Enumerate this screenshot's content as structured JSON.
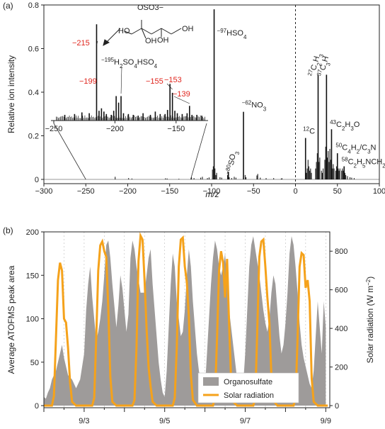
{
  "chart_data": [
    {
      "panel_label": "(a)",
      "type": "bar",
      "xlabel": "m/z",
      "ylabel": "Relative ion intensity",
      "xlim": [
        -300,
        100
      ],
      "ylim": [
        0,
        0.8
      ],
      "xticks": [
        "−300",
        "−250",
        "−200",
        "−150",
        "−100",
        "−50",
        "0",
        "50",
        "100"
      ],
      "yticks": [
        "0",
        "0.2",
        "0.4",
        "0.6",
        "0.8"
      ],
      "zero_line": "dashed",
      "peaks": [
        {
          "x": -97,
          "y": 0.78,
          "label": "HSO4",
          "sup": "−97"
        },
        {
          "x": -80,
          "y": 0.035,
          "label": "SO3",
          "sup": "−80"
        },
        {
          "x": -62,
          "y": 0.31,
          "label": "NO3",
          "sup": "−62"
        },
        {
          "x": 12,
          "y": 0.19,
          "label": "C",
          "sup": "12"
        },
        {
          "x": 27,
          "y": 0.48,
          "label": "C2H3",
          "sup": "27"
        },
        {
          "x": 37,
          "y": 0.48,
          "label": "C3H",
          "sup": "37"
        },
        {
          "x": 43,
          "y": 0.23,
          "label": "C2H3O",
          "sup": "43"
        },
        {
          "x": 50,
          "y": 0.12,
          "label": "C4H2/C3N",
          "sup": "50"
        },
        {
          "x": 58,
          "y": 0.06,
          "label": "C2H5NCH2",
          "sup": "58"
        }
      ],
      "minor_peaks": [
        {
          "x": -215,
          "y": 0.012
        },
        {
          "x": -199,
          "y": 0.006
        },
        {
          "x": -195,
          "y": 0.004
        },
        {
          "x": -155,
          "y": 0.005
        },
        {
          "x": -153,
          "y": 0.004
        },
        {
          "x": -139,
          "y": 0.003
        },
        {
          "x": -124,
          "y": 0.01
        },
        {
          "x": -121,
          "y": 0.006
        },
        {
          "x": -113,
          "y": 0.008
        },
        {
          "x": -111,
          "y": 0.012
        },
        {
          "x": -105,
          "y": 0.006
        },
        {
          "x": -103,
          "y": 0.009
        },
        {
          "x": -99,
          "y": 0.045
        },
        {
          "x": -98,
          "y": 0.06
        },
        {
          "x": -96,
          "y": 0.05
        },
        {
          "x": -95,
          "y": 0.02
        },
        {
          "x": -94,
          "y": 0.03
        },
        {
          "x": -90,
          "y": 0.01
        },
        {
          "x": -88,
          "y": 0.008
        },
        {
          "x": -81,
          "y": 0.02
        },
        {
          "x": -79,
          "y": 0.01
        },
        {
          "x": -76,
          "y": 0.006
        },
        {
          "x": -73,
          "y": 0.012
        },
        {
          "x": -71,
          "y": 0.008
        },
        {
          "x": -60,
          "y": 0.02
        },
        {
          "x": -59,
          "y": 0.01
        },
        {
          "x": -46,
          "y": 0.018
        },
        {
          "x": -45,
          "y": 0.025
        },
        {
          "x": -42,
          "y": 0.008
        },
        {
          "x": -35,
          "y": 0.006
        },
        {
          "x": -26,
          "y": 0.006
        },
        {
          "x": -17,
          "y": 0.004
        },
        {
          "x": -16,
          "y": 0.005
        },
        {
          "x": 13,
          "y": 0.03
        },
        {
          "x": 14,
          "y": 0.05
        },
        {
          "x": 15,
          "y": 0.09
        },
        {
          "x": 16,
          "y": 0.06
        },
        {
          "x": 17,
          "y": 0.04
        },
        {
          "x": 18,
          "y": 0.05
        },
        {
          "x": 19,
          "y": 0.03
        },
        {
          "x": 24,
          "y": 0.05
        },
        {
          "x": 25,
          "y": 0.08
        },
        {
          "x": 26,
          "y": 0.12
        },
        {
          "x": 28,
          "y": 0.08
        },
        {
          "x": 29,
          "y": 0.1
        },
        {
          "x": 31,
          "y": 0.04
        },
        {
          "x": 32,
          "y": 0.03
        },
        {
          "x": 33,
          "y": 0.05
        },
        {
          "x": 35,
          "y": 0.09
        },
        {
          "x": 36,
          "y": 0.15
        },
        {
          "x": 38,
          "y": 0.1
        },
        {
          "x": 39,
          "y": 0.13
        },
        {
          "x": 40,
          "y": 0.08
        },
        {
          "x": 41,
          "y": 0.14
        },
        {
          "x": 42,
          "y": 0.09
        },
        {
          "x": 44,
          "y": 0.05
        },
        {
          "x": 45,
          "y": 0.07
        },
        {
          "x": 46,
          "y": 0.05
        },
        {
          "x": 48,
          "y": 0.04
        },
        {
          "x": 49,
          "y": 0.06
        },
        {
          "x": 51,
          "y": 0.05
        },
        {
          "x": 52,
          "y": 0.04
        },
        {
          "x": 53,
          "y": 0.05
        },
        {
          "x": 55,
          "y": 0.04
        },
        {
          "x": 56,
          "y": 0.05
        },
        {
          "x": 57,
          "y": 0.04
        },
        {
          "x": 59,
          "y": 0.03
        },
        {
          "x": 60,
          "y": 0.02
        },
        {
          "x": 62,
          "y": 0.015
        },
        {
          "x": 65,
          "y": 0.01
        },
        {
          "x": 67,
          "y": 0.008
        },
        {
          "x": 70,
          "y": 0.006
        }
      ],
      "inset": {
        "xlim": [
          -250,
          -125
        ],
        "xticks": [
          "−250",
          "−200",
          "−150"
        ],
        "ylim": [
          0,
          0.012
        ],
        "zoom_range": [
          -250,
          -125
        ],
        "peaks": [
          {
            "x": -215,
            "y": 0.0118,
            "label": "−215",
            "color": "red"
          },
          {
            "x": -199,
            "y": 0.003,
            "label": "−199",
            "color": "red"
          },
          {
            "x": -197,
            "y": 0.0022
          },
          {
            "x": -195,
            "y": 0.003,
            "label": "H2SO4HSO4",
            "sup": "−195"
          },
          {
            "x": -155,
            "y": 0.0045,
            "label": "−155",
            "color": "red"
          },
          {
            "x": -153,
            "y": 0.0034,
            "label": "−153",
            "color": "red"
          },
          {
            "x": -139,
            "y": 0.0018,
            "label": "−139",
            "color": "red"
          },
          {
            "x": -241,
            "y": 0.0007
          },
          {
            "x": -233,
            "y": 0.0008
          },
          {
            "x": -227,
            "y": 0.001
          },
          {
            "x": -221,
            "y": 0.0009
          },
          {
            "x": -213,
            "y": 0.0012
          },
          {
            "x": -211,
            "y": 0.0015
          },
          {
            "x": -209,
            "y": 0.0011
          },
          {
            "x": -207,
            "y": 0.0008
          },
          {
            "x": -203,
            "y": 0.0007
          },
          {
            "x": -201,
            "y": 0.0012
          },
          {
            "x": -193,
            "y": 0.0009
          },
          {
            "x": -189,
            "y": 0.0008
          },
          {
            "x": -185,
            "y": 0.0007
          },
          {
            "x": -181,
            "y": 0.0006
          },
          {
            "x": -177,
            "y": 0.0009
          },
          {
            "x": -171,
            "y": 0.0007
          },
          {
            "x": -167,
            "y": 0.0011
          },
          {
            "x": -163,
            "y": 0.0008
          },
          {
            "x": -159,
            "y": 0.0008
          },
          {
            "x": -157,
            "y": 0.0013
          },
          {
            "x": -151,
            "y": 0.0012
          },
          {
            "x": -149,
            "y": 0.0009
          },
          {
            "x": -145,
            "y": 0.0008
          },
          {
            "x": -141,
            "y": 0.0009
          },
          {
            "x": -137,
            "y": 0.0007
          },
          {
            "x": -133,
            "y": 0.0007
          },
          {
            "x": -129,
            "y": 0.0006
          }
        ],
        "structure_label": "OSO3−"
      }
    },
    {
      "panel_label": "(b)",
      "type": "area+line",
      "ylabel_left": "Average ATOFMS peak area",
      "ylabel_right": "Solar radiation (W m−2)",
      "ylim_left": [
        0,
        200
      ],
      "ylim_right": [
        0,
        900
      ],
      "yticks_left": [
        "0",
        "50",
        "100",
        "150",
        "200"
      ],
      "yticks_right": [
        "0",
        "200",
        "400",
        "600",
        "800"
      ],
      "xlim": [
        2.0,
        9.1
      ],
      "xtick_labels": [
        "9/3",
        "9/5",
        "9/7",
        "9/9"
      ],
      "xtick_positions": [
        3,
        5,
        7,
        9
      ],
      "legend": {
        "position": "bottom-right",
        "entries": [
          "Organosulfate",
          "Solar radiation"
        ]
      },
      "colors": {
        "organosulfate": "#9e9b9a",
        "solar": "#f5a21b"
      },
      "series": [
        {
          "name": "Organosulfate",
          "x": [
            2.0,
            2.05,
            2.1,
            2.15,
            2.2,
            2.3,
            2.4,
            2.45,
            2.5,
            2.55,
            2.6,
            2.7,
            2.8,
            2.9,
            3.0,
            3.05,
            3.1,
            3.15,
            3.2,
            3.25,
            3.3,
            3.35,
            3.4,
            3.45,
            3.5,
            3.55,
            3.6,
            3.65,
            3.7,
            3.75,
            3.8,
            3.85,
            3.9,
            3.95,
            4.0,
            4.05,
            4.1,
            4.15,
            4.2,
            4.25,
            4.3,
            4.4,
            4.5,
            4.55,
            4.6,
            4.65,
            4.7,
            4.75,
            4.8,
            4.85,
            4.9,
            4.95,
            5.0,
            5.05,
            5.1,
            5.15,
            5.2,
            5.25,
            5.3,
            5.35,
            5.4,
            5.45,
            5.5,
            5.55,
            5.6,
            5.65,
            5.7,
            5.75,
            5.8,
            5.85,
            5.9,
            5.95,
            6.0,
            6.05,
            6.1,
            6.15,
            6.2,
            6.25,
            6.3,
            6.35,
            6.4,
            6.45,
            6.5,
            6.55,
            6.6,
            6.65,
            6.7,
            6.75,
            6.8,
            6.85,
            6.9,
            6.95,
            7.0,
            7.05,
            7.1,
            7.15,
            7.2,
            7.25,
            7.3,
            7.35,
            7.4,
            7.45,
            7.5,
            7.55,
            7.6,
            7.65,
            7.7,
            7.75,
            7.8,
            7.85,
            7.9,
            7.95,
            8.0,
            8.05,
            8.1,
            8.15,
            8.2,
            8.25,
            8.3,
            8.35,
            8.4,
            8.45,
            8.5,
            8.55,
            8.6,
            8.65,
            8.7,
            8.75,
            8.8,
            8.85,
            8.9,
            8.95,
            9.0
          ],
          "y": [
            10,
            8,
            15,
            20,
            30,
            40,
            60,
            70,
            55,
            45,
            35,
            30,
            20,
            30,
            60,
            110,
            140,
            160,
            125,
            100,
            75,
            85,
            100,
            120,
            150,
            185,
            190,
            170,
            140,
            115,
            90,
            115,
            150,
            135,
            110,
            85,
            105,
            170,
            190,
            180,
            160,
            130,
            130,
            150,
            170,
            180,
            140,
            110,
            80,
            50,
            30,
            15,
            10,
            40,
            90,
            140,
            175,
            160,
            120,
            100,
            80,
            85,
            110,
            150,
            180,
            160,
            120,
            90,
            60,
            40,
            25,
            15,
            20,
            60,
            100,
            140,
            170,
            190,
            180,
            160,
            150,
            160,
            175,
            140,
            110,
            90,
            70,
            50,
            30,
            20,
            15,
            25,
            60,
            110,
            160,
            185,
            195,
            180,
            165,
            150,
            130,
            110,
            95,
            85,
            100,
            130,
            150,
            140,
            110,
            80,
            60,
            70,
            95,
            130,
            175,
            195,
            185,
            160,
            130,
            95,
            70,
            55,
            45,
            35,
            25,
            20,
            40,
            80,
            120,
            90,
            60,
            120,
            90
          ]
        },
        {
          "name": "Solar radiation",
          "x": [
            2.0,
            2.2,
            2.25,
            2.3,
            2.35,
            2.4,
            2.45,
            2.5,
            2.55,
            2.6,
            2.65,
            2.7,
            2.8,
            3.0,
            3.2,
            3.25,
            3.3,
            3.35,
            3.4,
            3.45,
            3.5,
            3.55,
            3.6,
            3.65,
            3.7,
            3.8,
            4.0,
            4.2,
            4.25,
            4.3,
            4.35,
            4.4,
            4.45,
            4.5,
            4.55,
            4.6,
            4.65,
            4.7,
            4.8,
            5.0,
            5.2,
            5.25,
            5.3,
            5.35,
            5.4,
            5.45,
            5.5,
            5.55,
            5.6,
            5.65,
            5.7,
            5.8,
            6.0,
            6.2,
            6.25,
            6.3,
            6.35,
            6.4,
            6.45,
            6.5,
            6.55,
            6.6,
            6.65,
            6.7,
            6.8,
            7.0,
            7.2,
            7.25,
            7.3,
            7.35,
            7.4,
            7.45,
            7.5,
            7.55,
            7.6,
            7.65,
            7.7,
            7.8,
            8.0,
            8.2,
            8.25,
            8.3,
            8.35,
            8.4,
            8.45,
            8.5,
            8.55,
            8.6,
            8.65,
            8.7,
            8.8,
            9.0,
            9.05
          ],
          "y": [
            0,
            0,
            50,
            350,
            650,
            740,
            700,
            450,
            430,
            300,
            120,
            20,
            0,
            0,
            0,
            40,
            350,
            700,
            830,
            850,
            800,
            770,
            500,
            150,
            20,
            0,
            0,
            0,
            30,
            300,
            750,
            880,
            860,
            650,
            400,
            200,
            100,
            20,
            0,
            0,
            0,
            40,
            300,
            720,
            860,
            870,
            720,
            640,
            460,
            160,
            30,
            0,
            0,
            0,
            50,
            350,
            700,
            800,
            740,
            560,
            760,
            420,
            130,
            20,
            0,
            0,
            0,
            40,
            400,
            770,
            850,
            860,
            720,
            560,
            430,
            150,
            25,
            0,
            0,
            0,
            40,
            350,
            720,
            790,
            780,
            610,
            650,
            540,
            140,
            20,
            0,
            0,
            0
          ]
        }
      ]
    }
  ]
}
